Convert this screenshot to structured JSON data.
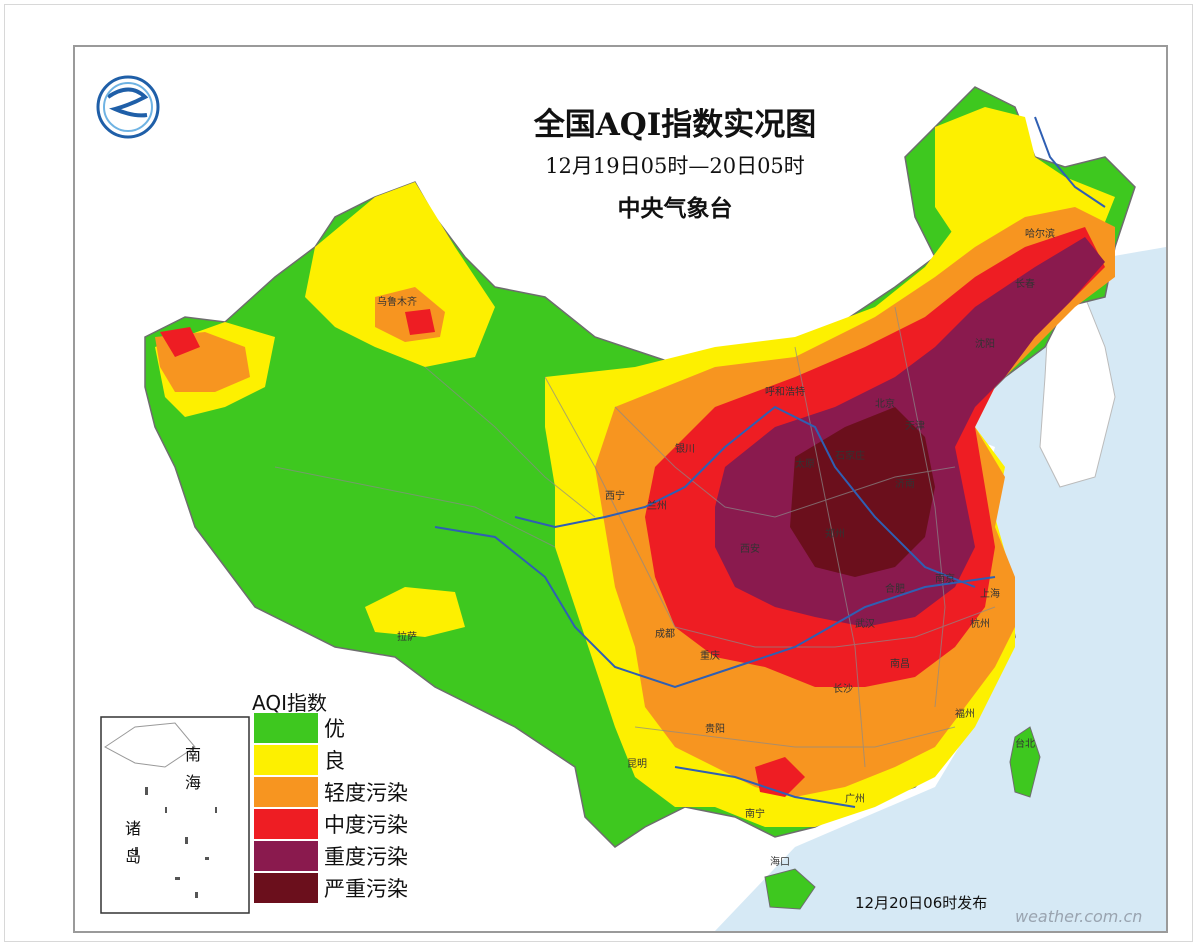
{
  "map": {
    "title": "全国AQI指数实况图",
    "period": "12月19日05时—20日05时",
    "agency": "中央气象台",
    "release_time": "12月20日06时发布",
    "watermark": "weather.com.cn"
  },
  "legend": {
    "title": "AQI指数",
    "items": [
      {
        "label": "优",
        "color": "#3ec81f"
      },
      {
        "label": "良",
        "color": "#fdf000"
      },
      {
        "label": "轻度污染",
        "color": "#f79520"
      },
      {
        "label": "中度污染",
        "color": "#ee1d23"
      },
      {
        "label": "重度污染",
        "color": "#8a1a4e"
      },
      {
        "label": "严重污染",
        "color": "#6b0f1c"
      }
    ]
  },
  "inset": {
    "sea_label_1": "南",
    "sea_label_2": "海",
    "islands_label_1": "诸",
    "islands_label_2": "岛"
  },
  "cities": [
    "乌鲁木齐",
    "拉萨",
    "西宁",
    "兰州",
    "银川",
    "呼和浩特",
    "北京",
    "天津",
    "石家庄",
    "太原",
    "济南",
    "郑州",
    "西安",
    "成都",
    "重庆",
    "贵阳",
    "昆明",
    "长沙",
    "武汉",
    "合肥",
    "南京",
    "上海",
    "杭州",
    "南昌",
    "福州",
    "台北",
    "广州",
    "南宁",
    "海口",
    "沈阳",
    "长春",
    "哈尔滨"
  ],
  "colors": {
    "sea": "#d6e9f5",
    "border": "#9a9a9a",
    "river": "#2f5fb3"
  }
}
